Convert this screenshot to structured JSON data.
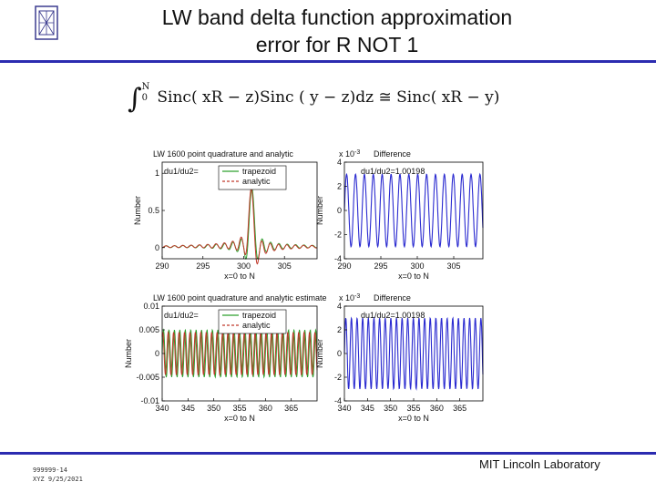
{
  "slide": {
    "title_line1": "LW band delta function approximation",
    "title_line2": "error for R NOT 1",
    "footer_id": "999999-14",
    "footer_date": "XYZ 9/25/2021",
    "footer_org": "MIT Lincoln Laboratory",
    "logo_icon": "mit-ll-logo",
    "accent_color": "#2b2bb0"
  },
  "formula": {
    "upper": "N",
    "lower": "0",
    "text": "Sinc( xR − z)Sinc ( y − z)dz ≅ Sinc( xR − y)"
  },
  "chart_data": [
    {
      "type": "line",
      "title": "LW 1600 point quadrature and analytic",
      "xlabel": "x=0 to N",
      "ylabel": "Number",
      "xlim": [
        290,
        309
      ],
      "ylim": [
        -0.15,
        1.15
      ],
      "xticks": [
        290,
        295,
        300,
        305
      ],
      "yticks": [
        0,
        0.5,
        1
      ],
      "ytick_labels": [
        "0",
        "0.5",
        "1"
      ],
      "annotation": "du1/du2=",
      "series": [
        {
          "name": "trapezoid",
          "color": "#2ea02e"
        },
        {
          "name": "analytic",
          "color": "#c0392b"
        }
      ],
      "peak_x": 301,
      "peak_y": 0.8
    },
    {
      "type": "line",
      "title": "Difference",
      "xlabel": "x=0 to N",
      "ylabel": "Number",
      "exponent": "x 10",
      "exponent_power": "-3",
      "xlim": [
        290,
        309
      ],
      "ylim": [
        -4,
        4
      ],
      "xticks": [
        290,
        295,
        300,
        305
      ],
      "yticks": [
        -4,
        -2,
        0,
        2,
        4
      ],
      "ytick_labels": [
        "-4",
        "-2",
        "0",
        "2",
        "4"
      ],
      "annotation": "du1/du2=1.00198",
      "series": [
        {
          "name": "",
          "color": "#2a2ad0"
        }
      ],
      "amplitude": 3
    },
    {
      "type": "line",
      "title": "LW 1600 point quadrature and analytic estimate",
      "xlabel": "x=0 to N",
      "ylabel": "Number",
      "xlim": [
        340,
        370
      ],
      "ylim": [
        -0.01,
        0.01
      ],
      "xticks": [
        340,
        345,
        350,
        355,
        360,
        365
      ],
      "yticks": [
        -0.01,
        -0.005,
        0,
        0.005,
        0.01
      ],
      "ytick_labels": [
        "-0.01",
        "-0.005",
        "0",
        "0.005",
        "0.01"
      ],
      "annotation": "du1/du2=",
      "series": [
        {
          "name": "trapezoid",
          "color": "#2ea02e"
        },
        {
          "name": "analytic",
          "color": "#c0392b"
        }
      ],
      "amplitude": 0.005
    },
    {
      "type": "line",
      "title": "Difference",
      "xlabel": "x=0 to N",
      "ylabel": "Number",
      "exponent": "x 10",
      "exponent_power": "-3",
      "xlim": [
        340,
        370
      ],
      "ylim": [
        -4,
        4
      ],
      "xticks": [
        340,
        345,
        350,
        355,
        360,
        365
      ],
      "yticks": [
        -4,
        -2,
        0,
        2,
        4
      ],
      "ytick_labels": [
        "-4",
        "-2",
        "0",
        "2",
        "4"
      ],
      "annotation": "du1/du2=1.00198",
      "series": [
        {
          "name": "",
          "color": "#2a2ad0"
        }
      ],
      "amplitude": 3
    }
  ]
}
